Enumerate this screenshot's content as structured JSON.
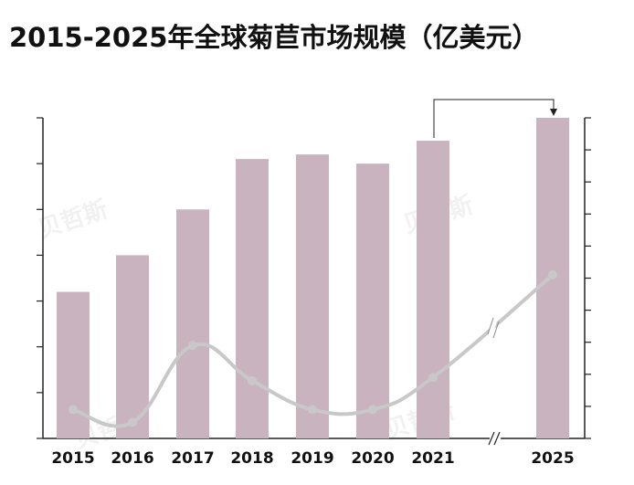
{
  "title": "2015-2025年全球菊苣市场规模（亿美元）",
  "watermark": "贝哲斯",
  "colors": {
    "bar": "#c8b3be",
    "line": "#c8c8c8",
    "axis": "#222222"
  },
  "chart_data": {
    "type": "bar",
    "categories": [
      "2015",
      "2016",
      "2017",
      "2018",
      "2019",
      "2020",
      "2021",
      "2025"
    ],
    "series": [
      {
        "type": "bar",
        "values": [
          3.2,
          4.0,
          5.0,
          6.1,
          6.2,
          6.0,
          6.5,
          7.0
        ]
      },
      {
        "type": "line",
        "values": [
          0.9,
          0.5,
          2.9,
          1.8,
          0.9,
          0.9,
          1.9,
          5.1
        ]
      }
    ],
    "ylim": [
      0,
      7.0
    ],
    "y2lim": [
      0,
      10.0
    ],
    "axis_break_after": "2021",
    "annotation": "growth-arrow 2021 to 2025",
    "grid": false,
    "legend": "none"
  }
}
